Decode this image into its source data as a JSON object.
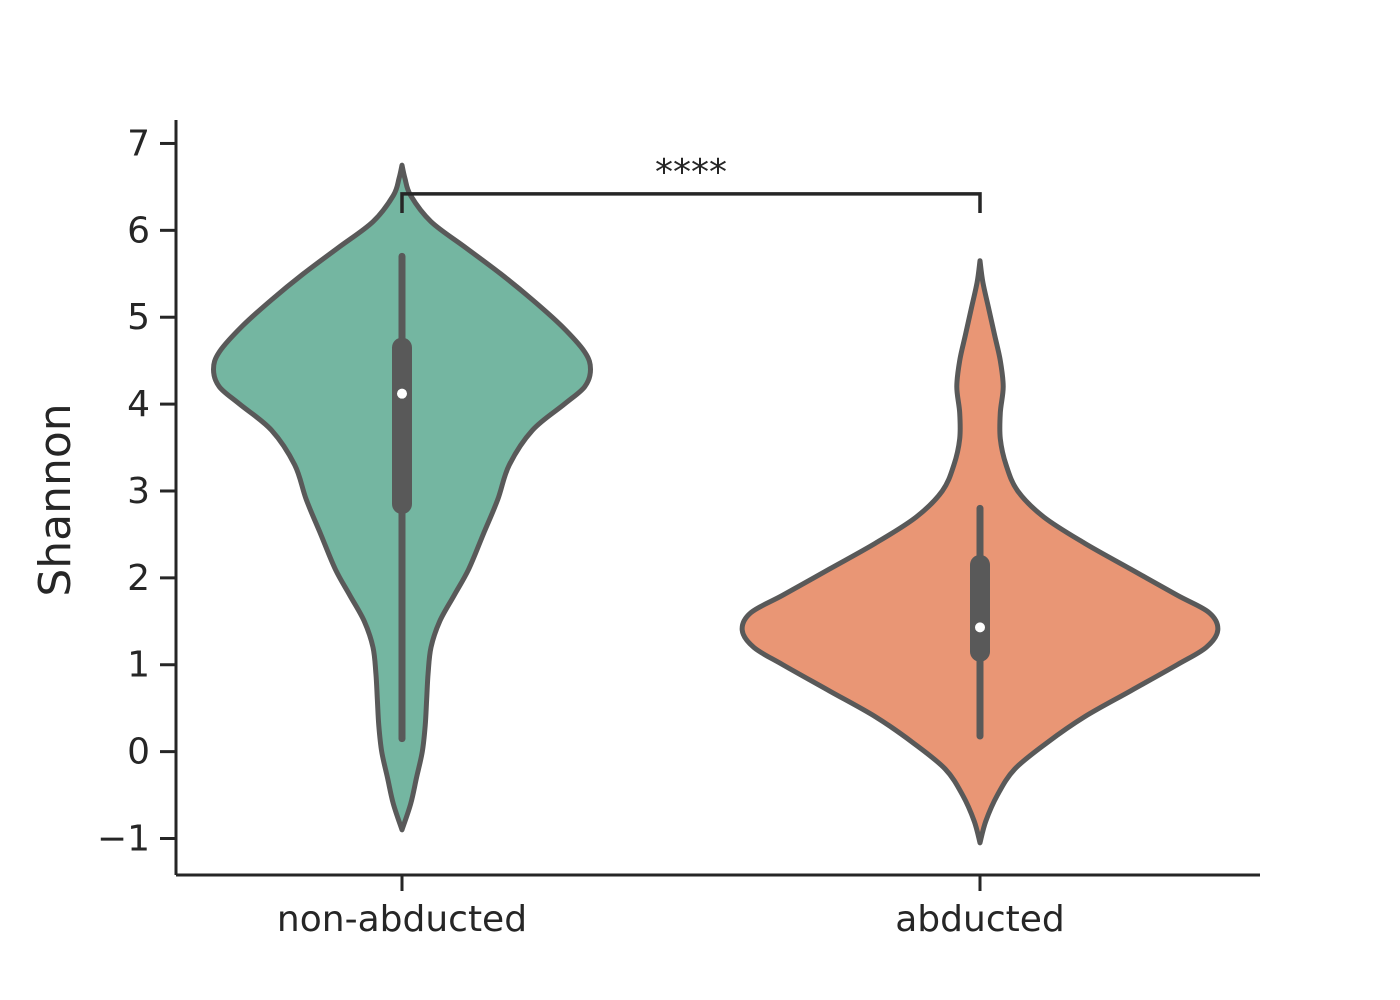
{
  "chart_data": {
    "type": "violin",
    "title": "",
    "xlabel": "",
    "ylabel": "Shannon",
    "ylim": [
      -1.42,
      7.27
    ],
    "yticks": [
      -1,
      0,
      1,
      2,
      3,
      4,
      5,
      6,
      7
    ],
    "ytick_labels": [
      "−1",
      "0",
      "1",
      "2",
      "3",
      "4",
      "5",
      "6",
      "7"
    ],
    "grid": false,
    "legend": "none",
    "categories": [
      "non-abducted",
      "abducted"
    ],
    "colors": {
      "non-abducted": "#74b6a1",
      "abducted": "#e99675",
      "outline": "#595959",
      "axis": "#262626"
    },
    "series": [
      {
        "category": "non-abducted",
        "kde_min": -0.9,
        "kde_max": 6.75,
        "whisker_low": 0.15,
        "whisker_high": 5.7,
        "q1": 2.85,
        "median": 4.12,
        "q3": 4.65,
        "profile": [
          [
            -0.9,
            0.0
          ],
          [
            -0.6,
            0.03
          ],
          [
            -0.3,
            0.05
          ],
          [
            0.0,
            0.07
          ],
          [
            0.3,
            0.08
          ],
          [
            0.6,
            0.085
          ],
          [
            0.9,
            0.09
          ],
          [
            1.2,
            0.1
          ],
          [
            1.5,
            0.13
          ],
          [
            1.8,
            0.18
          ],
          [
            2.1,
            0.23
          ],
          [
            2.5,
            0.28
          ],
          [
            2.9,
            0.33
          ],
          [
            3.3,
            0.37
          ],
          [
            3.7,
            0.45
          ],
          [
            4.0,
            0.56
          ],
          [
            4.2,
            0.63
          ],
          [
            4.4,
            0.65
          ],
          [
            4.6,
            0.63
          ],
          [
            4.9,
            0.55
          ],
          [
            5.2,
            0.45
          ],
          [
            5.5,
            0.34
          ],
          [
            5.8,
            0.22
          ],
          [
            6.1,
            0.1
          ],
          [
            6.4,
            0.03
          ],
          [
            6.6,
            0.01
          ],
          [
            6.75,
            0.0
          ]
        ]
      },
      {
        "category": "abducted",
        "kde_min": -1.05,
        "kde_max": 5.65,
        "whisker_low": 0.18,
        "whisker_high": 2.8,
        "q1": 1.15,
        "median": 1.43,
        "q3": 2.15,
        "profile": [
          [
            -1.05,
            0.0
          ],
          [
            -0.8,
            0.02
          ],
          [
            -0.5,
            0.06
          ],
          [
            -0.2,
            0.12
          ],
          [
            0.1,
            0.23
          ],
          [
            0.4,
            0.36
          ],
          [
            0.7,
            0.52
          ],
          [
            1.0,
            0.68
          ],
          [
            1.2,
            0.78
          ],
          [
            1.4,
            0.82
          ],
          [
            1.6,
            0.79
          ],
          [
            1.8,
            0.68
          ],
          [
            2.1,
            0.52
          ],
          [
            2.4,
            0.36
          ],
          [
            2.7,
            0.22
          ],
          [
            3.0,
            0.13
          ],
          [
            3.3,
            0.09
          ],
          [
            3.6,
            0.07
          ],
          [
            3.9,
            0.07
          ],
          [
            4.2,
            0.08
          ],
          [
            4.5,
            0.07
          ],
          [
            4.8,
            0.05
          ],
          [
            5.1,
            0.03
          ],
          [
            5.4,
            0.01
          ],
          [
            5.65,
            0.0
          ]
        ]
      }
    ],
    "annotations": [
      {
        "text": "****",
        "between": [
          "non-abducted",
          "abducted"
        ],
        "y": 6.42,
        "tick_bottom": 6.2
      }
    ]
  }
}
